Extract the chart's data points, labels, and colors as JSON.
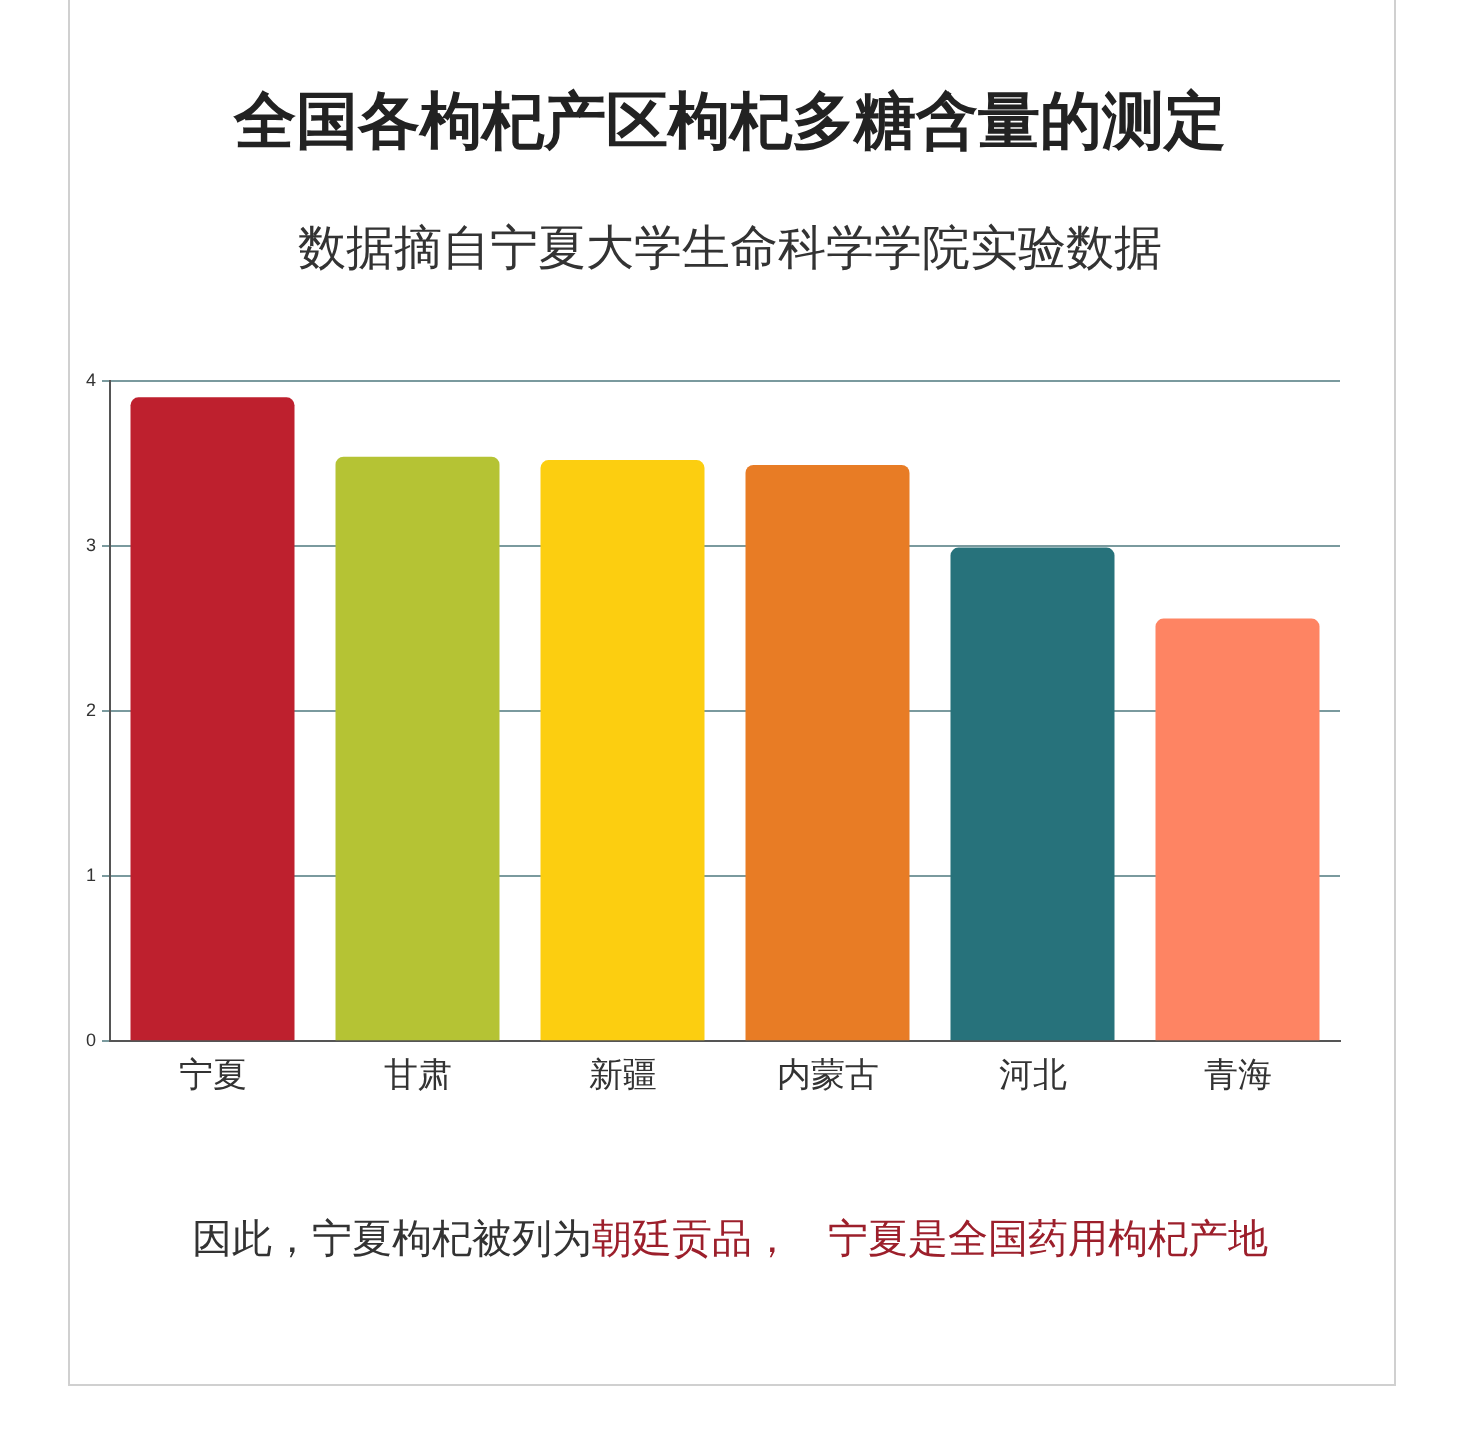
{
  "chart_data": {
    "type": "bar",
    "title": "全国各枸杞产区枸杞多糖含量的测定",
    "subtitle": "数据摘自宁夏大学生命科学学院实验数据",
    "categories": [
      "宁夏",
      "甘肃",
      "新疆",
      "内蒙古",
      "河北",
      "青海"
    ],
    "values": [
      3.9,
      3.54,
      3.52,
      3.49,
      2.99,
      2.56
    ],
    "colors": [
      "#be202e",
      "#b5c334",
      "#fcce10",
      "#e87c25",
      "#27727b",
      "#fe8463"
    ],
    "ylim": [
      0,
      4
    ],
    "yticks": [
      0,
      1,
      2,
      3,
      4
    ],
    "grid": "y",
    "annotations": [
      "因此，宁夏枸杞被列为",
      "朝廷贡品，",
      "宁夏是全国药用枸杞产地"
    ]
  }
}
